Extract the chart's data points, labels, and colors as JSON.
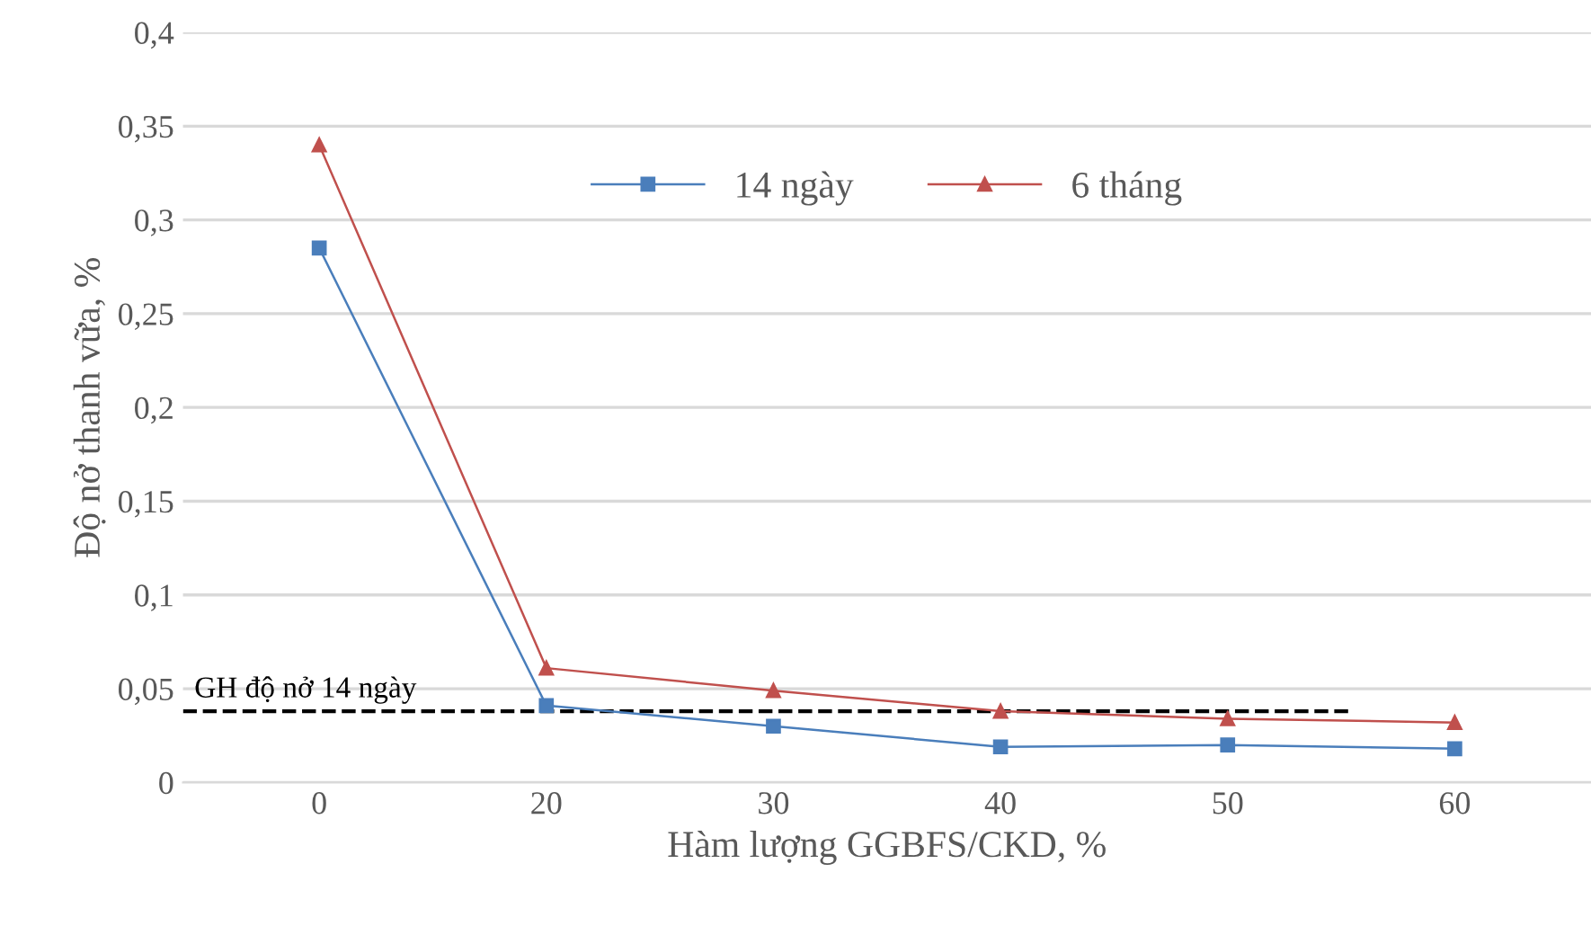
{
  "chart_data": {
    "type": "line",
    "xlabel": "Hàm lượng GGBFS/CKD, %",
    "ylabel": "Độ nở thanh vữa, %",
    "categories": [
      "0",
      "20",
      "30",
      "40",
      "50",
      "60"
    ],
    "series": [
      {
        "name": "14 ngày",
        "color": "#4a7ebb",
        "marker": "square",
        "values": [
          0.285,
          0.041,
          0.03,
          0.019,
          0.02,
          0.018
        ]
      },
      {
        "name": "6 tháng",
        "color": "#c0504d",
        "marker": "triangle",
        "values": [
          0.34,
          0.061,
          0.049,
          0.038,
          0.034,
          0.032
        ]
      }
    ],
    "ylim": [
      0,
      0.4
    ],
    "yticks": [
      0,
      {
        "value": 0.05,
        "label": "0,05"
      },
      {
        "value": 0.1,
        "label": "0,1"
      },
      {
        "value": 0.15,
        "label": "0,15"
      },
      {
        "value": 0.2,
        "label": "0,2"
      },
      {
        "value": 0.25,
        "label": "0,25"
      },
      {
        "value": 0.3,
        "label": "0,3"
      },
      {
        "value": 0.35,
        "label": "0,35"
      },
      {
        "value": 0.4,
        "label": "0,4"
      }
    ],
    "ref_lines": [
      {
        "axis": "y",
        "value": 0.038,
        "label": "GH độ nở 14 ngày",
        "color": "#000000",
        "line_style": "dashed"
      }
    ],
    "grid": "y",
    "legend": "top",
    "line_style": "solid"
  }
}
